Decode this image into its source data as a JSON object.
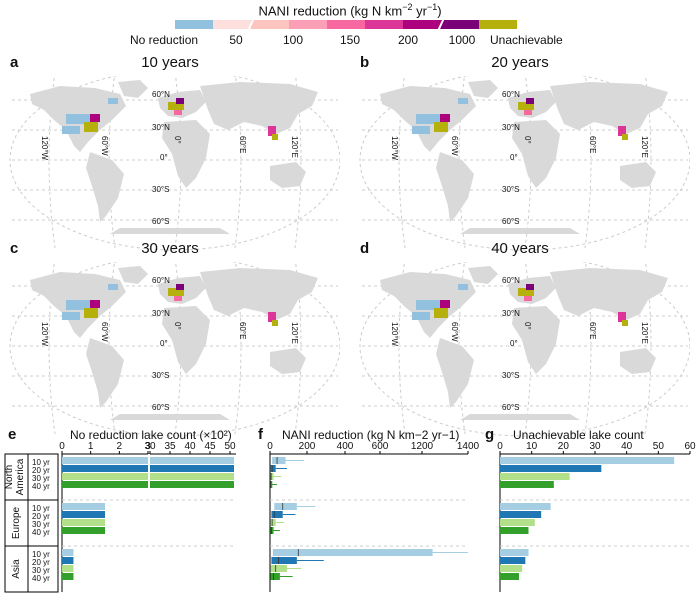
{
  "legend": {
    "title_main": "NANI reduction (kg N km",
    "title_sup1": "−2",
    "title_mid": " yr",
    "title_sup2": "−1",
    "title_end": ")",
    "labels": [
      "No reduction",
      "50",
      "100",
      "150",
      "200",
      "1000",
      "Unachievable"
    ],
    "colors": [
      "#92c0df",
      "#fde0dd",
      "#fcc5c0",
      "#fa9fb5",
      "#f768a1",
      "#dd3497",
      "#ae017e",
      "#7a0177",
      "#b5b00c"
    ]
  },
  "maps": [
    {
      "letter": "a",
      "title": "10 years"
    },
    {
      "letter": "b",
      "title": "20 years"
    },
    {
      "letter": "c",
      "title": "30 years"
    },
    {
      "letter": "d",
      "title": "40 years"
    }
  ],
  "map_labels": {
    "lat": [
      "60°N",
      "30°N",
      "0°",
      "30°S",
      "60°S"
    ],
    "lon": [
      "120°W",
      "60°W",
      "0°",
      "60°E",
      "120°E"
    ]
  },
  "regions": [
    "North America",
    "Europe",
    "Asia"
  ],
  "years": [
    "10 yr",
    "20 yr",
    "30 yr",
    "40 yr"
  ],
  "series_colors": [
    "#a6cee3",
    "#1f78b4",
    "#b2df8a",
    "#33a02c"
  ],
  "chart_data": [
    {
      "letter": "e",
      "type": "bar",
      "title": "No reduction lake count (×10²)",
      "xlim_break": [
        [
          0,
          3
        ],
        [
          30,
          50
        ]
      ],
      "xticks": [
        "0",
        "1",
        "2",
        "3",
        "30",
        "35",
        "40",
        "45",
        "50"
      ],
      "series": [
        {
          "name": "10 yr",
          "values": [
            51,
            1.5,
            0.4
          ]
        },
        {
          "name": "20 yr",
          "values": [
            51,
            1.5,
            0.4
          ]
        },
        {
          "name": "30 yr",
          "values": [
            51,
            1.5,
            0.4
          ]
        },
        {
          "name": "40 yr",
          "values": [
            51,
            1.5,
            0.4
          ]
        }
      ],
      "categories": [
        "North America",
        "Europe",
        "Asia"
      ]
    },
    {
      "letter": "f",
      "type": "box",
      "title": "NANI reduction (kg N km−2 yr−1)",
      "xticks": [
        "0",
        "200",
        "400",
        "600",
        "1200",
        "1400"
      ],
      "categories": [
        "North America",
        "Europe",
        "Asia"
      ],
      "series": [
        {
          "name": "10 yr",
          "boxes": [
            [
              0,
              15,
              50,
              110,
              240
            ],
            [
              0,
              30,
              90,
              190,
              320
            ],
            [
              10,
              20,
              200,
              1150,
              1400
            ]
          ]
        },
        {
          "name": "20 yr",
          "boxes": [
            [
              0,
              5,
              15,
              40,
              120
            ],
            [
              0,
              10,
              30,
              90,
              180
            ],
            [
              0,
              10,
              60,
              190,
              380
            ]
          ]
        },
        {
          "name": "30 yr",
          "boxes": [
            [
              0,
              3,
              8,
              25,
              80
            ],
            [
              0,
              5,
              15,
              40,
              100
            ],
            [
              0,
              5,
              40,
              120,
              220
            ]
          ]
        },
        {
          "name": "40 yr",
          "boxes": [
            [
              0,
              2,
              5,
              15,
              50
            ],
            [
              0,
              3,
              10,
              25,
              70
            ],
            [
              0,
              3,
              25,
              70,
              160
            ]
          ]
        }
      ]
    },
    {
      "letter": "g",
      "type": "bar",
      "title": "Unachievable lake count",
      "xlim": [
        0,
        60
      ],
      "xticks": [
        "0",
        "10",
        "20",
        "30",
        "40",
        "50",
        "60"
      ],
      "categories": [
        "North America",
        "Europe",
        "Asia"
      ],
      "series": [
        {
          "name": "10 yr",
          "values": [
            55,
            16,
            9
          ]
        },
        {
          "name": "20 yr",
          "values": [
            32,
            13,
            8
          ]
        },
        {
          "name": "30 yr",
          "values": [
            22,
            11,
            7
          ]
        },
        {
          "name": "40 yr",
          "values": [
            17,
            9,
            6
          ]
        }
      ]
    }
  ]
}
